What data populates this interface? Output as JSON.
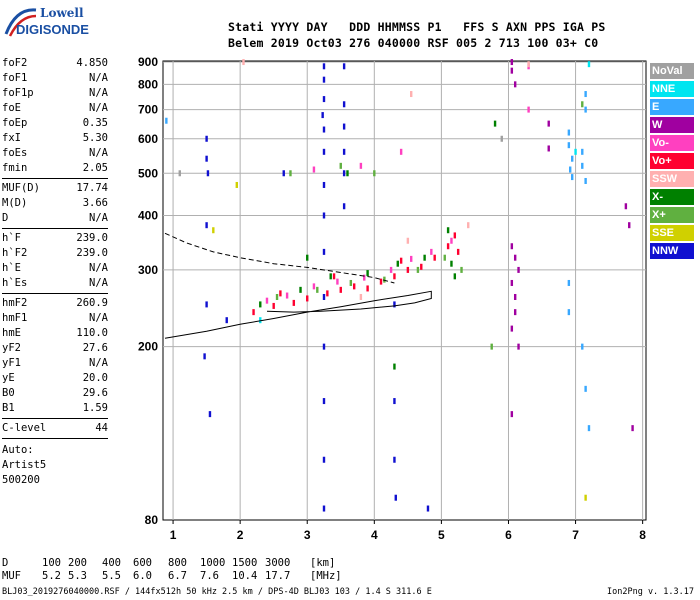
{
  "logo": {
    "brand_top": "Lowell",
    "brand_bottom": "DIGISONDE"
  },
  "header": {
    "line1": "Stati YYYY DAY   DDD HHMMSS P1   FFS S AXN PPS IGA PS",
    "line2": "Belem 2019 Oct03 276 040000 RSF 005 2 713 100 03+ C0"
  },
  "params": [
    {
      "label": "foF2",
      "value": "4.850"
    },
    {
      "label": "foF1",
      "value": "N/A"
    },
    {
      "label": "foF1p",
      "value": "N/A"
    },
    {
      "label": "foE",
      "value": "N/A"
    },
    {
      "label": "foEp",
      "value": "0.35"
    },
    {
      "label": "fxI",
      "value": "5.30"
    },
    {
      "label": "foEs",
      "value": "N/A"
    },
    {
      "label": "fmin",
      "value": "2.05"
    },
    {
      "sep": true
    },
    {
      "label": "MUF(D)",
      "value": "17.74"
    },
    {
      "label": "M(D)",
      "value": "3.66"
    },
    {
      "label": "D",
      "value": "N/A"
    },
    {
      "sep": true
    },
    {
      "label": "h`F",
      "value": "239.0"
    },
    {
      "label": "h`F2",
      "value": "239.0"
    },
    {
      "label": "h`E",
      "value": "N/A"
    },
    {
      "label": "h`Es",
      "value": "N/A"
    },
    {
      "sep": true
    },
    {
      "label": "hmF2",
      "value": "260.9"
    },
    {
      "label": "hmF1",
      "value": "N/A"
    },
    {
      "label": "hmE",
      "value": "110.0"
    },
    {
      "label": "yF2",
      "value": "27.6"
    },
    {
      "label": "yF1",
      "value": "N/A"
    },
    {
      "label": "yE",
      "value": "20.0"
    },
    {
      "label": "B0",
      "value": "29.6"
    },
    {
      "label": "B1",
      "value": "1.59"
    },
    {
      "sep": true
    },
    {
      "label": "C-level",
      "value": "44"
    },
    {
      "sep": true
    }
  ],
  "auto": {
    "line1": "Auto:",
    "line2": "Artist5",
    "line3": "500200"
  },
  "legend": [
    {
      "label": "NoVal",
      "color": "#a0a0a0"
    },
    {
      "label": "NNE",
      "color": "#00e5f0"
    },
    {
      "label": "E",
      "color": "#38a8ff"
    },
    {
      "label": "W",
      "color": "#a000a0"
    },
    {
      "label": "Vo-",
      "color": "#ff40c0"
    },
    {
      "label": "Vo+",
      "color": "#ff0030"
    },
    {
      "label": "SSW",
      "color": "#ffb0b0"
    },
    {
      "label": "X-",
      "color": "#008000"
    },
    {
      "label": "X+",
      "color": "#60b040"
    },
    {
      "label": "SSE",
      "color": "#d0d000"
    },
    {
      "label": "NNW",
      "color": "#1010d0"
    }
  ],
  "footer": {
    "d_label": "D",
    "muf_label": "MUF",
    "d_values": [
      "100",
      "200",
      "400",
      "600",
      "800",
      "1000",
      "1500",
      "3000",
      "[km]"
    ],
    "muf_values": [
      "5.2",
      "5.3",
      "5.5",
      "6.0",
      "6.7",
      "7.6",
      "10.4",
      "17.7",
      "[MHz]"
    ],
    "bottom_line": "BLJ03_2019276040000.RSF / 144fx512h 50 kHz 2.5 km / DPS-4D BLJ03 103 / 1.4 S 311.6 E",
    "version": "Ion2Png v. 1.3.17"
  },
  "chart_data": {
    "type": "scatter",
    "title": "",
    "xlabel": "",
    "ylabel": "",
    "xlim": [
      0.85,
      8.05
    ],
    "ylim": [
      80,
      905
    ],
    "x_ticks": [
      1,
      2,
      3,
      4,
      5,
      6,
      7,
      8
    ],
    "y_ticks": [
      80,
      200,
      300,
      400,
      500,
      600,
      700,
      800,
      900
    ],
    "grid": true,
    "legend_position": "right",
    "traces": [
      {
        "name": "NNW",
        "color": "#1010d0",
        "points": [
          [
            1.5,
            600
          ],
          [
            1.5,
            540
          ],
          [
            1.52,
            500
          ],
          [
            1.5,
            380
          ],
          [
            1.5,
            250
          ],
          [
            1.47,
            190
          ],
          [
            1.55,
            140
          ],
          [
            3.25,
            880
          ],
          [
            3.25,
            820
          ],
          [
            3.25,
            740
          ],
          [
            3.23,
            680
          ],
          [
            3.25,
            630
          ],
          [
            3.25,
            560
          ],
          [
            3.25,
            470
          ],
          [
            3.25,
            400
          ],
          [
            3.25,
            330
          ],
          [
            3.25,
            260
          ],
          [
            3.25,
            200
          ],
          [
            3.25,
            150
          ],
          [
            3.25,
            110
          ],
          [
            3.25,
            85
          ],
          [
            3.55,
            880
          ],
          [
            3.55,
            720
          ],
          [
            3.55,
            640
          ],
          [
            3.55,
            560
          ],
          [
            3.55,
            500
          ],
          [
            3.55,
            420
          ],
          [
            4.3,
            250
          ],
          [
            4.3,
            150
          ],
          [
            4.3,
            110
          ],
          [
            4.32,
            90
          ],
          [
            4.8,
            85
          ],
          [
            1.8,
            230
          ],
          [
            2.65,
            500
          ]
        ]
      },
      {
        "name": "E",
        "color": "#38a8ff",
        "points": [
          [
            0.9,
            660
          ],
          [
            6.9,
            620
          ],
          [
            6.9,
            580
          ],
          [
            6.95,
            540
          ],
          [
            6.92,
            510
          ],
          [
            6.95,
            490
          ],
          [
            7.15,
            760
          ],
          [
            7.15,
            700
          ],
          [
            7.1,
            560
          ],
          [
            7.1,
            520
          ],
          [
            7.15,
            480
          ],
          [
            6.9,
            280
          ],
          [
            6.9,
            240
          ],
          [
            7.1,
            200
          ],
          [
            7.15,
            160
          ],
          [
            7.2,
            130
          ]
        ]
      },
      {
        "name": "W",
        "color": "#a000a0",
        "points": [
          [
            6.05,
            900
          ],
          [
            6.05,
            860
          ],
          [
            6.1,
            800
          ],
          [
            6.05,
            340
          ],
          [
            6.1,
            320
          ],
          [
            6.15,
            300
          ],
          [
            6.05,
            280
          ],
          [
            6.1,
            260
          ],
          [
            6.1,
            240
          ],
          [
            6.05,
            220
          ],
          [
            6.15,
            200
          ],
          [
            6.05,
            140
          ],
          [
            7.75,
            420
          ],
          [
            7.8,
            380
          ],
          [
            7.85,
            130
          ],
          [
            6.6,
            570
          ],
          [
            6.6,
            650
          ]
        ]
      },
      {
        "name": "Vo+",
        "color": "#ff0030",
        "points": [
          [
            2.2,
            240
          ],
          [
            2.5,
            248
          ],
          [
            2.8,
            252
          ],
          [
            3.0,
            258
          ],
          [
            3.3,
            265
          ],
          [
            3.5,
            270
          ],
          [
            3.7,
            275
          ],
          [
            3.9,
            272
          ],
          [
            4.1,
            282
          ],
          [
            4.3,
            290
          ],
          [
            4.5,
            300
          ],
          [
            4.7,
            305
          ],
          [
            4.9,
            320
          ],
          [
            5.1,
            340
          ],
          [
            5.2,
            360
          ],
          [
            5.25,
            330
          ],
          [
            2.6,
            265
          ],
          [
            3.4,
            290
          ],
          [
            4.4,
            315
          ]
        ]
      },
      {
        "name": "Vo-",
        "color": "#ff40c0",
        "points": [
          [
            2.4,
            255
          ],
          [
            2.7,
            262
          ],
          [
            3.1,
            275
          ],
          [
            3.45,
            282
          ],
          [
            3.85,
            288
          ],
          [
            4.25,
            300
          ],
          [
            4.55,
            318
          ],
          [
            4.85,
            330
          ],
          [
            5.15,
            350
          ],
          [
            6.3,
            880
          ],
          [
            6.3,
            700
          ],
          [
            3.1,
            510
          ],
          [
            3.8,
            520
          ],
          [
            4.4,
            560
          ]
        ]
      },
      {
        "name": "X-",
        "color": "#008000",
        "points": [
          [
            2.3,
            250
          ],
          [
            2.9,
            270
          ],
          [
            3.35,
            290
          ],
          [
            3.9,
            295
          ],
          [
            4.35,
            310
          ],
          [
            4.75,
            320
          ],
          [
            5.1,
            370
          ],
          [
            5.15,
            310
          ],
          [
            5.2,
            290
          ],
          [
            3.0,
            320
          ],
          [
            5.8,
            650
          ],
          [
            3.6,
            500
          ],
          [
            4.3,
            180
          ]
        ]
      },
      {
        "name": "X+",
        "color": "#60b040",
        "points": [
          [
            2.55,
            260
          ],
          [
            3.15,
            270
          ],
          [
            3.65,
            280
          ],
          [
            4.15,
            285
          ],
          [
            4.65,
            300
          ],
          [
            5.05,
            320
          ],
          [
            5.3,
            300
          ],
          [
            2.75,
            500
          ],
          [
            3.5,
            520
          ],
          [
            4.0,
            500
          ],
          [
            5.75,
            200
          ],
          [
            7.1,
            720
          ]
        ]
      },
      {
        "name": "SSW",
        "color": "#ffb0b0",
        "points": [
          [
            2.05,
            900
          ],
          [
            4.55,
            760
          ],
          [
            6.3,
            890
          ],
          [
            3.8,
            260
          ],
          [
            4.5,
            350
          ],
          [
            5.4,
            380
          ]
        ]
      },
      {
        "name": "NNE",
        "color": "#00e5f0",
        "points": [
          [
            2.3,
            230
          ],
          [
            7.0,
            560
          ],
          [
            7.2,
            890
          ]
        ]
      },
      {
        "name": "SSE",
        "color": "#d0d000",
        "points": [
          [
            1.6,
            370
          ],
          [
            1.95,
            470
          ],
          [
            7.15,
            90
          ]
        ]
      },
      {
        "name": "NoVal",
        "color": "#a0a0a0",
        "points": [
          [
            1.1,
            500
          ],
          [
            5.9,
            600
          ]
        ]
      }
    ],
    "profile_solid": [
      [
        0.88,
        209
      ],
      [
        1.5,
        217
      ],
      [
        2.0,
        225
      ],
      [
        2.5,
        232
      ],
      [
        3.0,
        240
      ],
      [
        3.5,
        247
      ],
      [
        4.0,
        255
      ],
      [
        4.5,
        262
      ],
      [
        4.85,
        268
      ],
      [
        4.85,
        258
      ],
      [
        4.6,
        252
      ],
      [
        4.3,
        248
      ],
      [
        3.8,
        244
      ],
      [
        3.2,
        241
      ],
      [
        2.8,
        240
      ],
      [
        2.4,
        241
      ]
    ],
    "profile_dashed": [
      [
        0.88,
        364
      ],
      [
        1.2,
        346
      ],
      [
        1.6,
        330
      ],
      [
        2.0,
        320
      ],
      [
        2.5,
        310
      ],
      [
        3.0,
        304
      ],
      [
        3.5,
        296
      ],
      [
        4.0,
        288
      ],
      [
        4.3,
        280
      ]
    ]
  }
}
